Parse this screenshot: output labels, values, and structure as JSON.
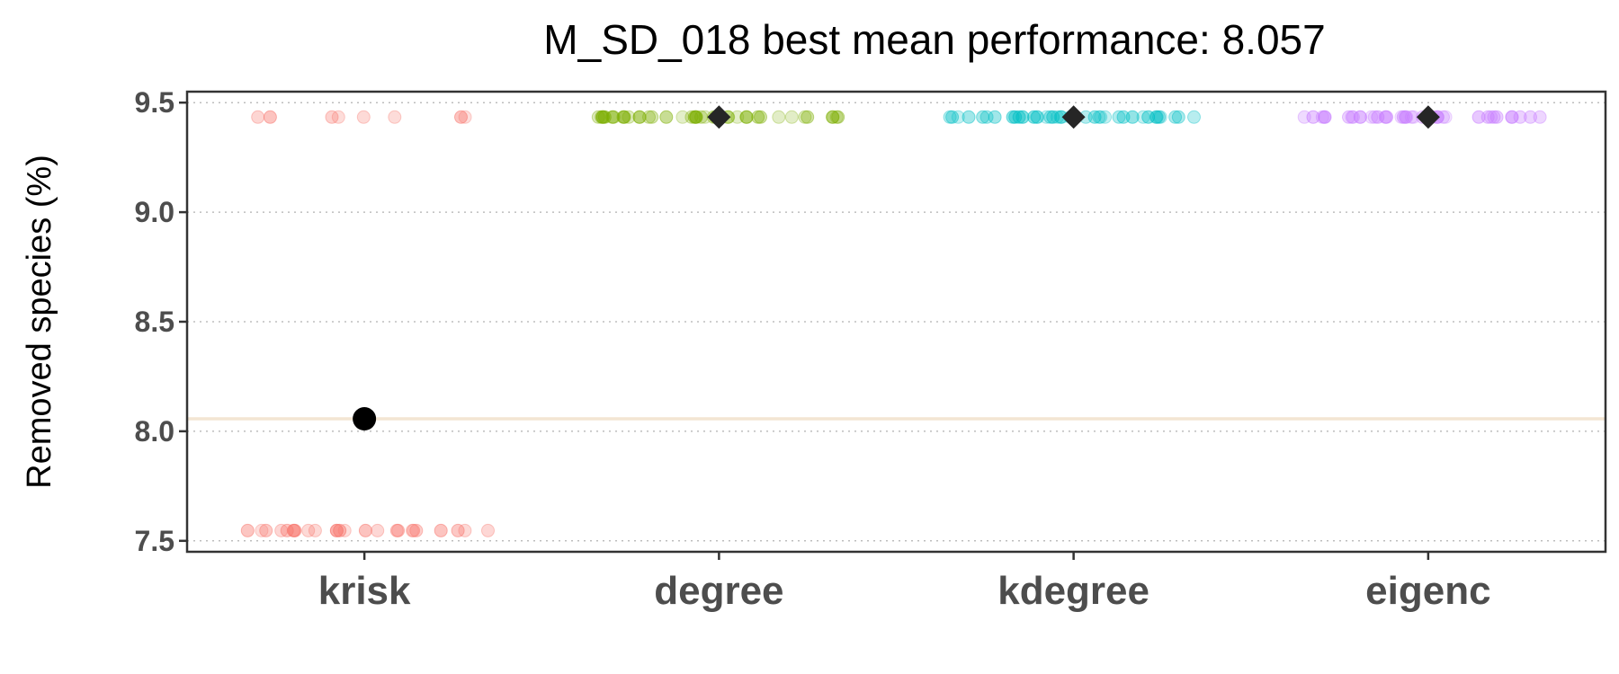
{
  "chart_data": {
    "type": "scatter",
    "title": "M_SD_018 best mean performance: 8.057",
    "ylabel": "Removed species (%)",
    "xlabel": "",
    "categories": [
      "krisk",
      "degree",
      "kdegree",
      "eigenc"
    ],
    "ylim": [
      7.45,
      9.55
    ],
    "yticks": [
      7.5,
      8.0,
      8.5,
      9.0,
      9.5
    ],
    "ytick_labels": [
      "7.5",
      "8.0",
      "8.5",
      "9.0",
      "9.5"
    ],
    "grid": "horizontal dotted",
    "reference_line": {
      "y": 8.057,
      "color": "#f3e5d3"
    },
    "series": [
      {
        "category": "krisk",
        "color": "#f8766d",
        "points": [
          {
            "y": 9.434,
            "n": 8
          },
          {
            "y": 7.547,
            "n": 26
          }
        ],
        "mean": 8.057,
        "mean_marker": "circle",
        "mean_color": "#000000"
      },
      {
        "category": "degree",
        "color": "#7cae00",
        "points": [
          {
            "y": 9.434,
            "n": 40
          }
        ],
        "mean": 9.434,
        "mean_marker": "diamond",
        "mean_color": "#262626"
      },
      {
        "category": "kdegree",
        "color": "#00bfc4",
        "points": [
          {
            "y": 9.434,
            "n": 40
          }
        ],
        "mean": 9.434,
        "mean_marker": "diamond",
        "mean_color": "#262626"
      },
      {
        "category": "eigenc",
        "color": "#c77cff",
        "points": [
          {
            "y": 9.434,
            "n": 40
          }
        ],
        "mean": 9.434,
        "mean_marker": "diamond",
        "mean_color": "#262626"
      }
    ]
  }
}
